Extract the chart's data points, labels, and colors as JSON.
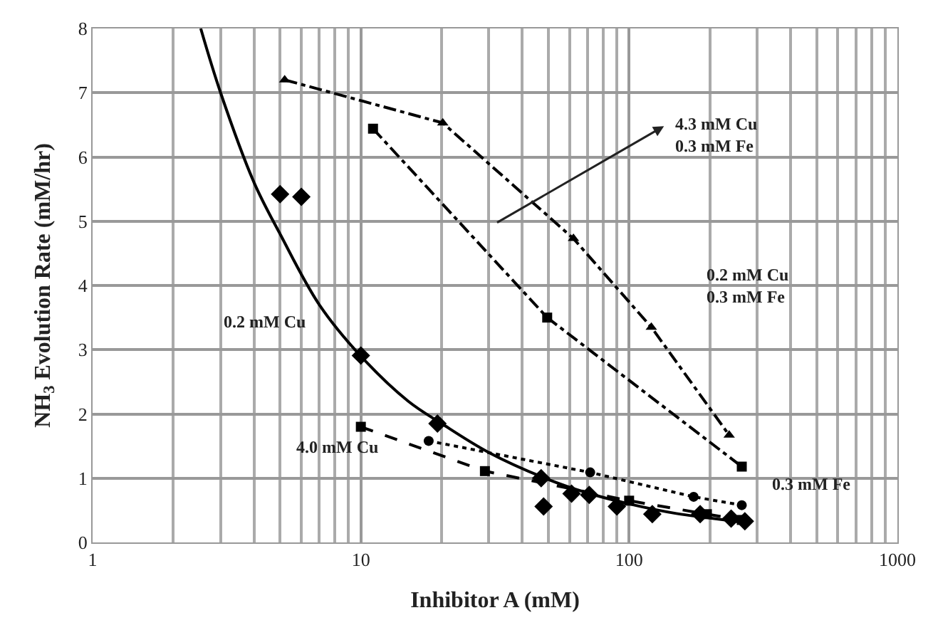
{
  "chart_data": {
    "type": "scatter",
    "xlabel": "Inhibitor A (mM)",
    "ylabel": "NH$_{3}$ Evolution Rate (mM/hr)",
    "log": "x",
    "xlim": [
      1,
      1000
    ],
    "xticks": [
      1,
      10,
      100,
      1000
    ],
    "ylim": [
      0,
      8
    ],
    "yticks": [
      0,
      1,
      2,
      3,
      4,
      5,
      6,
      7,
      8
    ],
    "grid": true,
    "legend": false,
    "series": [
      {
        "color": "#000000",
        "marker": "diamond",
        "x": [
          5,
          6,
          10,
          19.3,
          47,
          48,
          61,
          71,
          90,
          122,
          184,
          240,
          270
        ],
        "values": [
          5.42,
          5.38,
          2.91,
          1.85,
          1.0,
          0.56,
          0.76,
          0.74,
          0.56,
          0.44,
          0.44,
          0.37,
          0.33
        ]
      },
      {
        "type": "line",
        "color": "#000000",
        "marker": "none",
        "line_style": "solid",
        "x": [
          2.53,
          3,
          4,
          5,
          7,
          10,
          15,
          20,
          30,
          50,
          70,
          100,
          150,
          200,
          280
        ],
        "values": [
          8,
          7,
          5.6,
          4.8,
          3.7,
          2.9,
          2.2,
          1.85,
          1.4,
          0.98,
          0.77,
          0.6,
          0.45,
          0.38,
          0.3
        ]
      },
      {
        "type": "line",
        "color": "#000000",
        "marker": "triangle",
        "line_style": "dashdot",
        "x": [
          5.2,
          20.2,
          62,
          121,
          236
        ],
        "values": [
          7.2,
          6.53,
          4.73,
          3.35,
          1.67
        ]
      },
      {
        "type": "line",
        "color": "#000000",
        "marker": "square",
        "line_style": "dashdot",
        "x": [
          11.1,
          49.5,
          263
        ],
        "values": [
          6.44,
          3.5,
          1.18
        ]
      },
      {
        "type": "line",
        "color": "#000000",
        "marker": "square",
        "line_style": "dashed",
        "x": [
          10,
          29,
          100,
          195,
          263
        ],
        "values": [
          1.8,
          1.11,
          0.65,
          0.44,
          0.35
        ]
      },
      {
        "type": "line",
        "color": "#000000",
        "marker": "circle",
        "line_style": "dotted",
        "x": [
          17.9,
          71.6,
          174,
          263
        ],
        "values": [
          1.58,
          1.09,
          0.71,
          0.58
        ]
      }
    ],
    "annotations": [
      "4.3 mM Cu\n0.3 mM Fe",
      "0.2 mM Cu\n0.3 mM Fe",
      "0.2 mM Cu",
      "4.0 mM Cu",
      "0.3 mM Fe"
    ]
  }
}
